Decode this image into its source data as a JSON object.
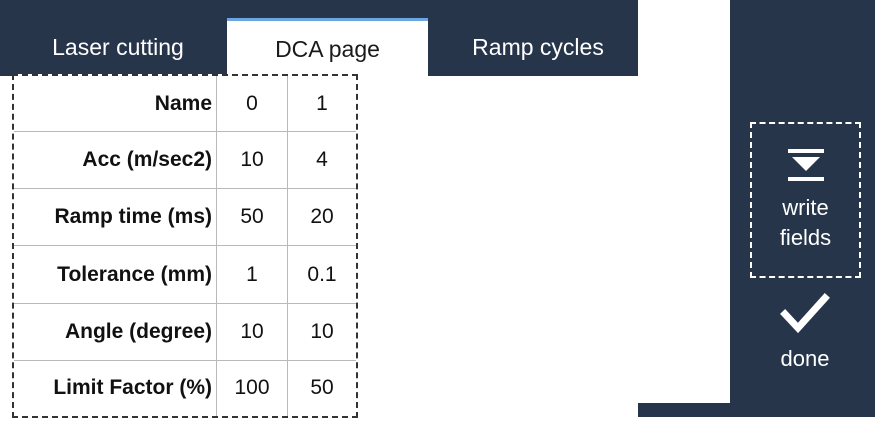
{
  "tabs": [
    {
      "label": "Laser cutting",
      "active": false
    },
    {
      "label": "DCA page",
      "active": true
    },
    {
      "label": "Ramp cycles",
      "active": false
    }
  ],
  "table": {
    "rows": [
      {
        "label": "Name",
        "values": [
          "0",
          "1"
        ]
      },
      {
        "label": "Acc (m/sec2)",
        "values": [
          "10",
          "4"
        ]
      },
      {
        "label": "Ramp time (ms)",
        "values": [
          "50",
          "20"
        ]
      },
      {
        "label": "Tolerance (mm)",
        "values": [
          "1",
          "0.1"
        ]
      },
      {
        "label": "Angle (degree)",
        "values": [
          "10",
          "10"
        ]
      },
      {
        "label": "Limit Factor (%)",
        "values": [
          "100",
          "50"
        ]
      }
    ]
  },
  "actions": {
    "write_line1": "write",
    "write_line2": "fields",
    "write_icon": "download-to-bottom-icon",
    "done_label": "done",
    "done_icon": "checkmark-icon"
  },
  "colors": {
    "panel": "#27354b",
    "tab_active_accent": "#6aa7e0"
  }
}
